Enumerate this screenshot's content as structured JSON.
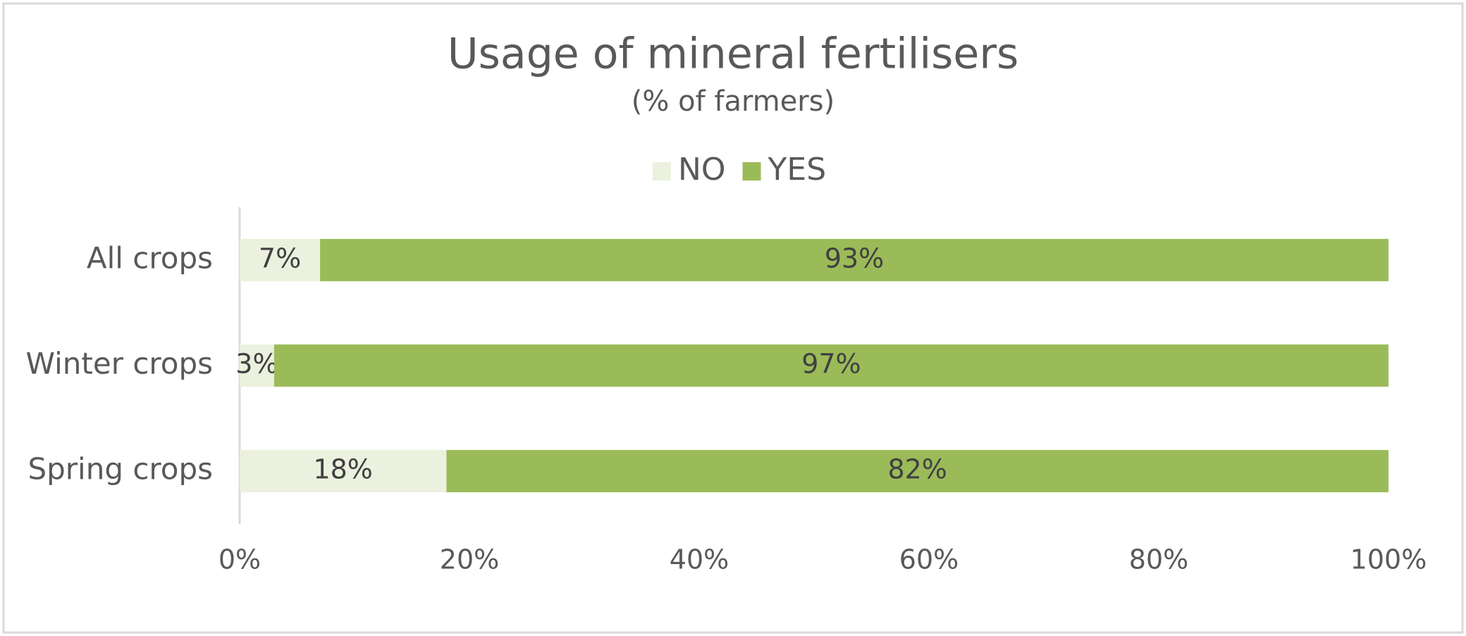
{
  "chart_data": {
    "type": "stacked-bar-horizontal",
    "title": "Usage of mineral fertilisers",
    "subtitle": "(% of farmers)",
    "categories": [
      "All crops",
      "Winter crops",
      "Spring crops"
    ],
    "series": [
      {
        "name": "NO",
        "color": "#ebf1de",
        "values": [
          7,
          3,
          18
        ],
        "value_labels": [
          "7%",
          "3%",
          "18%"
        ]
      },
      {
        "name": "YES",
        "color": "#9bbb59",
        "values": [
          93,
          97,
          82
        ],
        "value_labels": [
          "93%",
          "97%",
          "82%"
        ]
      }
    ],
    "xlim": [
      0,
      100
    ],
    "xticks": [
      {
        "value": 0,
        "label": "0%"
      },
      {
        "value": 20,
        "label": "20%"
      },
      {
        "value": 40,
        "label": "40%"
      },
      {
        "value": 60,
        "label": "60%"
      },
      {
        "value": 80,
        "label": "80%"
      },
      {
        "value": 100,
        "label": "100%"
      }
    ],
    "legend": "top"
  }
}
